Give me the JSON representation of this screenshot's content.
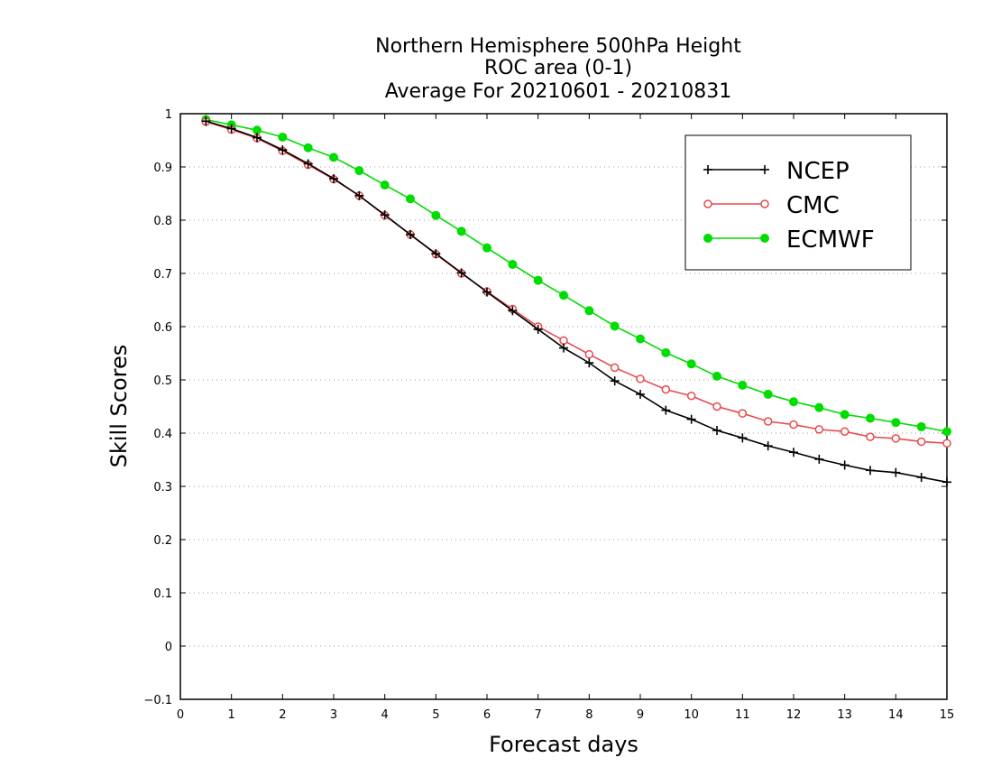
{
  "chart_data": {
    "type": "line",
    "title_lines": [
      "Northern Hemisphere 500hPa Height",
      "ROC area (0-1)",
      "Average For 20210601 - 20210831"
    ],
    "xlabel": "Forecast days",
    "ylabel": "Skill Scores",
    "xlim": [
      0,
      15
    ],
    "ylim": [
      -0.1,
      1
    ],
    "xticks": [
      "0",
      "1",
      "2",
      "3",
      "4",
      "5",
      "6",
      "7",
      "8",
      "9",
      "10",
      "11",
      "12",
      "13",
      "14",
      "15"
    ],
    "yticks": [
      "−0.1",
      "0",
      "0.1",
      "0.2",
      "0.3",
      "0.4",
      "0.5",
      "0.6",
      "0.7",
      "0.8",
      "0.9",
      "1"
    ],
    "grid": "horizontal-dotted",
    "legend_position": "top-right",
    "x": [
      0.5,
      1,
      1.5,
      2,
      2.5,
      3,
      3.5,
      4,
      4.5,
      5,
      5.5,
      6,
      6.5,
      7,
      7.5,
      8,
      8.5,
      9,
      9.5,
      10,
      10.5,
      11,
      11.5,
      12,
      12.5,
      13,
      13.5,
      14,
      14.5,
      15
    ],
    "series": [
      {
        "name": "NCEP",
        "color": "#000000",
        "marker": "plus",
        "values": [
          0.986,
          0.972,
          0.955,
          0.932,
          0.906,
          0.878,
          0.846,
          0.81,
          0.773,
          0.737,
          0.701,
          0.665,
          0.63,
          0.595,
          0.56,
          0.532,
          0.498,
          0.473,
          0.443,
          0.426,
          0.405,
          0.391,
          0.376,
          0.364,
          0.351,
          0.34,
          0.33,
          0.326,
          0.317,
          0.308
        ]
      },
      {
        "name": "CMC",
        "color": "#e8494c",
        "marker": "open-circle",
        "values": [
          0.985,
          0.97,
          0.954,
          0.93,
          0.904,
          0.877,
          0.846,
          0.809,
          0.773,
          0.736,
          0.7,
          0.666,
          0.633,
          0.6,
          0.574,
          0.548,
          0.523,
          0.502,
          0.482,
          0.47,
          0.45,
          0.437,
          0.422,
          0.416,
          0.407,
          0.403,
          0.393,
          0.39,
          0.384,
          0.381
        ]
      },
      {
        "name": "ECMWF",
        "color": "#00dd00",
        "marker": "filled-circle",
        "values": [
          0.989,
          0.979,
          0.969,
          0.956,
          0.936,
          0.918,
          0.893,
          0.866,
          0.84,
          0.809,
          0.779,
          0.748,
          0.717,
          0.687,
          0.659,
          0.63,
          0.601,
          0.577,
          0.551,
          0.53,
          0.507,
          0.49,
          0.473,
          0.459,
          0.448,
          0.435,
          0.428,
          0.42,
          0.412,
          0.403
        ]
      }
    ]
  }
}
